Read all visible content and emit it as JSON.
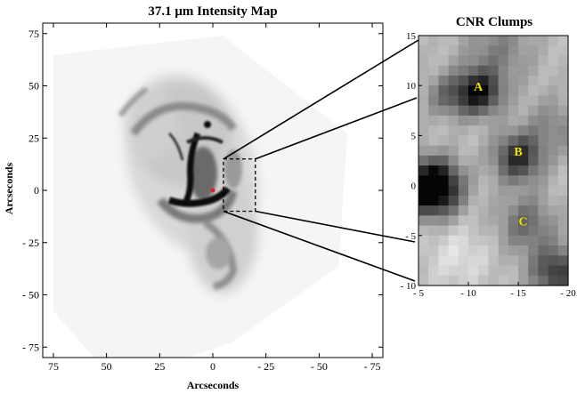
{
  "chart_data": [
    {
      "type": "heatmap",
      "title": "37.1 μm Intensity Map",
      "xlabel": "Arcseconds",
      "ylabel": "Arcseconds",
      "xlim": [
        80,
        -80
      ],
      "ylim": [
        -80,
        80
      ],
      "xticks": [
        75,
        50,
        25,
        0,
        -25,
        -50,
        -75
      ],
      "yticks": [
        75,
        50,
        25,
        0,
        -25,
        -50,
        -75
      ],
      "xtick_labels": [
        "75",
        "50",
        "25",
        "0",
        "- 25",
        "- 50",
        "- 75"
      ],
      "ytick_labels": [
        "75",
        "50",
        "25",
        "0",
        "- 25",
        "- 50",
        "- 75"
      ],
      "colormap": "grayscale-inverted",
      "zoom_box": {
        "x": [
          -5,
          -20
        ],
        "y": [
          -10,
          15
        ]
      },
      "center_marker": {
        "x": 0,
        "y": 0,
        "color": "#e02020"
      }
    },
    {
      "type": "heatmap",
      "title": "CNR Clumps",
      "xlim": [
        -5,
        -20
      ],
      "ylim": [
        -10,
        15
      ],
      "xticks": [
        -5,
        -10,
        -15,
        -20
      ],
      "yticks": [
        15,
        10,
        5,
        0,
        -5,
        -10
      ],
      "xtick_labels": [
        "- 5",
        "- 10",
        "- 15",
        "- 20"
      ],
      "ytick_labels": [
        "15",
        "10",
        "5",
        "0",
        "- 5",
        "- 10"
      ],
      "colormap": "grayscale-inverted",
      "annotations": [
        {
          "text": "A",
          "x": -11,
          "y": 9.5
        },
        {
          "text": "B",
          "x": -15,
          "y": 3
        },
        {
          "text": "C",
          "x": -15.5,
          "y": -4
        },
        {
          "text": "",
          "x": 0,
          "y": 0
        }
      ],
      "annotation_color": "#f0e000"
    }
  ]
}
